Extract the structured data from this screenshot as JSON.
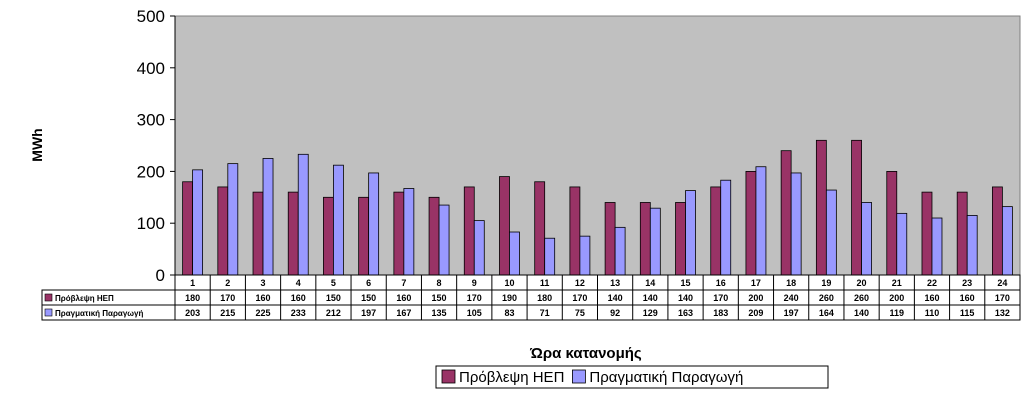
{
  "chart_data": {
    "type": "bar",
    "title": "",
    "xlabel": "Ώρα κατανομής",
    "ylabel": "MWh",
    "ylim": [
      0,
      500
    ],
    "yticks": [
      0,
      100,
      200,
      300,
      400,
      500
    ],
    "grid": false,
    "plot_background": "#C0C0C0",
    "legend_position": "bottom",
    "data_table": true,
    "categories": [
      "1",
      "2",
      "3",
      "4",
      "5",
      "6",
      "7",
      "8",
      "9",
      "10",
      "11",
      "12",
      "13",
      "14",
      "15",
      "16",
      "17",
      "18",
      "19",
      "20",
      "21",
      "22",
      "23",
      "24"
    ],
    "series": [
      {
        "name": "Πρόβλεψη ΗΕΠ",
        "color": "#993366",
        "values": [
          180,
          170,
          160,
          160,
          150,
          150,
          160,
          150,
          170,
          190,
          180,
          170,
          140,
          140,
          140,
          170,
          200,
          240,
          260,
          260,
          200,
          160,
          160,
          170
        ]
      },
      {
        "name": "Πραγματική Παραγωγή",
        "color": "#9999FF",
        "values": [
          203,
          215,
          225,
          233,
          212,
          197,
          167,
          135,
          105,
          83,
          71,
          75,
          92,
          129,
          163,
          183,
          209,
          197,
          164,
          140,
          119,
          110,
          115,
          132
        ]
      }
    ]
  }
}
